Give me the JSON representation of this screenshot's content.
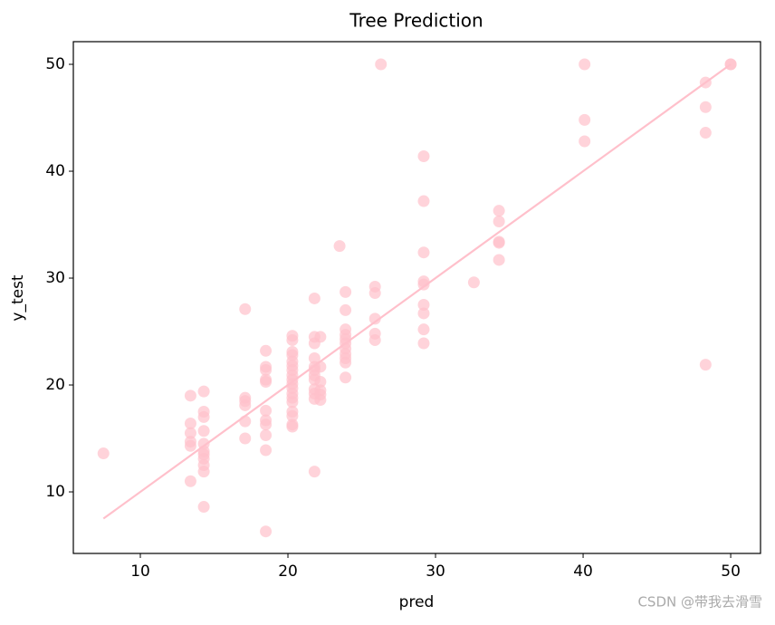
{
  "chart_data": {
    "type": "scatter",
    "title": "Tree Prediction",
    "x_label": "pred",
    "y_label": "y_test",
    "watermark": "CSDN @带我去滑雪",
    "color": "#ffc0cb",
    "x": [
      7.5,
      13.4,
      13.4,
      13.4,
      13.4,
      13.4,
      13.4,
      14.3,
      14.3,
      14.3,
      14.3,
      14.3,
      14.3,
      14.3,
      14.3,
      14.3,
      14.3,
      14.3,
      17.1,
      17.1,
      17.1,
      17.1,
      17.1,
      17.1,
      18.5,
      18.5,
      18.5,
      18.5,
      18.5,
      18.5,
      18.5,
      18.5,
      18.5,
      18.5,
      18.5,
      20.3,
      20.3,
      20.3,
      20.3,
      20.3,
      20.3,
      20.3,
      20.3,
      20.3,
      20.3,
      20.3,
      20.3,
      20.3,
      20.3,
      20.3,
      20.3,
      20.3,
      20.3,
      21.8,
      21.8,
      21.8,
      21.8,
      21.8,
      21.8,
      21.8,
      21.8,
      21.8,
      21.8,
      21.8,
      21.8,
      22.2,
      22.2,
      22.2,
      22.2,
      22.2,
      22.2,
      23.5,
      23.9,
      23.9,
      23.9,
      23.9,
      23.9,
      23.9,
      23.9,
      23.9,
      23.9,
      23.9,
      23.9,
      25.9,
      25.9,
      25.9,
      25.9,
      25.9,
      26.3,
      29.2,
      29.2,
      29.2,
      29.2,
      29.2,
      29.2,
      29.2,
      29.2,
      29.2,
      32.6,
      34.3,
      34.3,
      34.3,
      34.3,
      34.3,
      40.1,
      40.1,
      40.1,
      48.3,
      48.3,
      48.3,
      48.3,
      50,
      50
    ],
    "values": [
      13.6,
      19.0,
      16.4,
      15.5,
      14.7,
      14.3,
      11.0,
      19.4,
      17.5,
      17.0,
      15.7,
      14.5,
      13.8,
      13.5,
      13.1,
      12.5,
      11.9,
      8.6,
      27.1,
      18.8,
      18.5,
      18.1,
      16.6,
      15.0,
      23.2,
      21.7,
      21.4,
      20.5,
      20.3,
      17.6,
      16.7,
      16.3,
      15.3,
      13.9,
      6.3,
      24.6,
      24.2,
      23.1,
      22.8,
      22.2,
      21.8,
      21.4,
      20.9,
      20.5,
      20.1,
      19.7,
      19.2,
      18.8,
      18.4,
      17.5,
      17.1,
      16.3,
      16.1,
      28.1,
      24.5,
      23.9,
      22.5,
      21.7,
      21.4,
      20.9,
      20.5,
      19.6,
      19.2,
      18.7,
      11.9,
      24.5,
      21.7,
      20.3,
      19.5,
      19.1,
      18.6,
      33.0,
      28.7,
      27.0,
      25.2,
      24.7,
      24.3,
      23.9,
      23.4,
      22.9,
      22.5,
      22.1,
      20.7,
      29.2,
      28.6,
      26.2,
      24.8,
      24.2,
      50.0,
      41.4,
      37.2,
      32.4,
      29.7,
      29.4,
      27.5,
      26.7,
      25.2,
      23.9,
      29.6,
      36.3,
      35.3,
      33.4,
      33.3,
      31.7,
      50.0,
      44.8,
      42.8,
      48.3,
      46.0,
      43.6,
      21.9,
      50.0,
      50.0
    ],
    "fit_line": {
      "x": [
        7.5,
        50
      ],
      "values": [
        7.5,
        50
      ],
      "color": "#ffc0cb"
    },
    "xlim": [
      5.46,
      52.02
    ],
    "ylim": [
      4.24,
      52.12
    ],
    "xticks": [
      10,
      20,
      30,
      40,
      50
    ],
    "yticks": [
      10,
      20,
      30,
      40,
      50
    ]
  }
}
